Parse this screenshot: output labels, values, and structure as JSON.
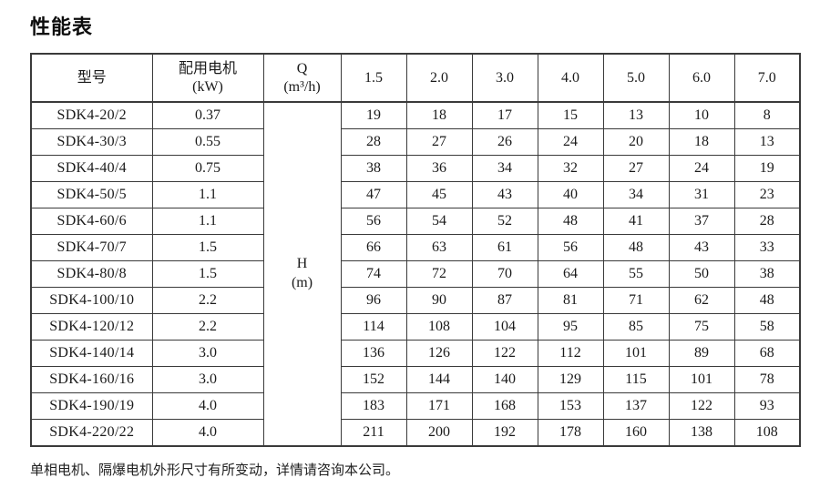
{
  "page": {
    "title": "性能表",
    "footnote": "单相电机、隔爆电机外形尺寸有所变动，详情请咨询本公司。"
  },
  "table": {
    "headers": {
      "model": "型号",
      "motor_line1": "配用电机",
      "motor_line2": "(kW)",
      "q_line1": "Q",
      "q_line2": "(m³/h)",
      "flow_values": [
        "1.5",
        "2.0",
        "3.0",
        "4.0",
        "5.0",
        "6.0",
        "7.0"
      ],
      "h_line1": "H",
      "h_line2": "(m)"
    },
    "rows": [
      {
        "model": "SDK4-20/2",
        "kw": "0.37",
        "h": [
          "19",
          "18",
          "17",
          "15",
          "13",
          "10",
          "8"
        ]
      },
      {
        "model": "SDK4-30/3",
        "kw": "0.55",
        "h": [
          "28",
          "27",
          "26",
          "24",
          "20",
          "18",
          "13"
        ]
      },
      {
        "model": "SDK4-40/4",
        "kw": "0.75",
        "h": [
          "38",
          "36",
          "34",
          "32",
          "27",
          "24",
          "19"
        ]
      },
      {
        "model": "SDK4-50/5",
        "kw": "1.1",
        "h": [
          "47",
          "45",
          "43",
          "40",
          "34",
          "31",
          "23"
        ]
      },
      {
        "model": "SDK4-60/6",
        "kw": "1.1",
        "h": [
          "56",
          "54",
          "52",
          "48",
          "41",
          "37",
          "28"
        ]
      },
      {
        "model": "SDK4-70/7",
        "kw": "1.5",
        "h": [
          "66",
          "63",
          "61",
          "56",
          "48",
          "43",
          "33"
        ]
      },
      {
        "model": "SDK4-80/8",
        "kw": "1.5",
        "h": [
          "74",
          "72",
          "70",
          "64",
          "55",
          "50",
          "38"
        ]
      },
      {
        "model": "SDK4-100/10",
        "kw": "2.2",
        "h": [
          "96",
          "90",
          "87",
          "81",
          "71",
          "62",
          "48"
        ]
      },
      {
        "model": "SDK4-120/12",
        "kw": "2.2",
        "h": [
          "114",
          "108",
          "104",
          "95",
          "85",
          "75",
          "58"
        ]
      },
      {
        "model": "SDK4-140/14",
        "kw": "3.0",
        "h": [
          "136",
          "126",
          "122",
          "112",
          "101",
          "89",
          "68"
        ]
      },
      {
        "model": "SDK4-160/16",
        "kw": "3.0",
        "h": [
          "152",
          "144",
          "140",
          "129",
          "115",
          "101",
          "78"
        ]
      },
      {
        "model": "SDK4-190/19",
        "kw": "4.0",
        "h": [
          "183",
          "171",
          "168",
          "153",
          "137",
          "122",
          "93"
        ]
      },
      {
        "model": "SDK4-220/22",
        "kw": "4.0",
        "h": [
          "211",
          "200",
          "192",
          "178",
          "160",
          "138",
          "108"
        ]
      }
    ]
  }
}
